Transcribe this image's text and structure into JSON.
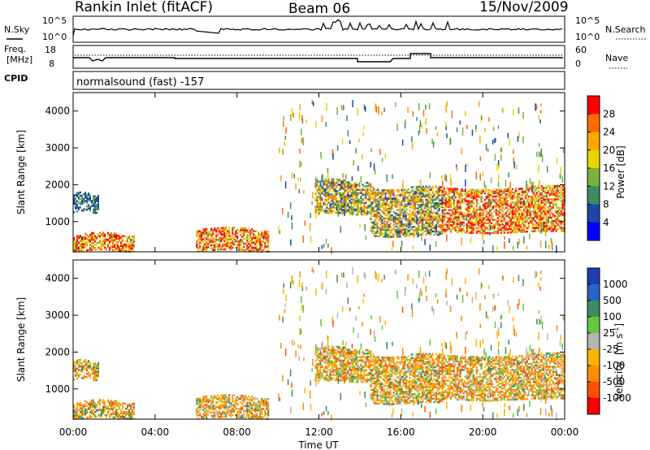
{
  "header": {
    "station": "Rankin Inlet (fitACF)",
    "beam": "Beam 06",
    "date": "15/Nov/2009"
  },
  "summary_panels": {
    "nsky_label": "N.Sky",
    "nsky_ticks": [
      "10^5",
      "10^0"
    ],
    "nsearch_label": "N.Search",
    "nsearch_ticks": [
      "10^5",
      "10^0"
    ],
    "freq_label": "Freq.",
    "freq_unit": "[MHz]",
    "freq_ticks": [
      "18",
      "8"
    ],
    "nave_label": "Nave",
    "nave_ticks": [
      "60",
      "0"
    ],
    "cpid_label": "CPID",
    "cpid_value": "normalsound (fast) -157"
  },
  "chart_data": [
    {
      "type": "heatmap",
      "name": "power",
      "ylabel": "Slant Range [km]",
      "xlabel": "Time UT",
      "ylim": [
        180,
        4500
      ],
      "xlim": [
        0,
        24
      ],
      "yticks": [
        "4000",
        "3000",
        "2000",
        "1000"
      ],
      "xticks": [
        "00:00",
        "04:00",
        "08:00",
        "12:00",
        "16:00",
        "20:00",
        "00:00"
      ],
      "colorbar": {
        "label": "Power [dB]",
        "ticks": [
          "28",
          "24",
          "20",
          "16",
          "12",
          "8",
          "4"
        ],
        "colors": [
          "#ff0000",
          "#ff6a00",
          "#ffa500",
          "#e8d400",
          "#78b43c",
          "#3c8c64",
          "#1e46aa",
          "#0000ff"
        ]
      },
      "echo_regions": [
        {
          "t0": 0.0,
          "t1": 3.0,
          "r0": 200,
          "r1": 650,
          "level": "high"
        },
        {
          "t0": 0.0,
          "t1": 1.2,
          "r0": 1250,
          "r1": 1750,
          "level": "low"
        },
        {
          "t0": 6.0,
          "t1": 9.5,
          "r0": 200,
          "r1": 800,
          "level": "high"
        },
        {
          "t0": 11.8,
          "t1": 14.5,
          "r0": 1200,
          "r1": 2100,
          "level": "mid"
        },
        {
          "t0": 14.5,
          "t1": 18.0,
          "r0": 600,
          "r1": 1900,
          "level": "mid"
        },
        {
          "t0": 18.0,
          "t1": 24.0,
          "r0": 700,
          "r1": 1900,
          "level": "high"
        }
      ]
    },
    {
      "type": "heatmap",
      "name": "velocity",
      "ylabel": "Slant Range [km]",
      "xlabel": "Time UT",
      "ylim": [
        180,
        4500
      ],
      "xlim": [
        0,
        24
      ],
      "yticks": [
        "4000",
        "3000",
        "2000",
        "1000"
      ],
      "xticks": [
        "00:00",
        "04:00",
        "08:00",
        "12:00",
        "16:00",
        "20:00",
        "00:00"
      ],
      "colorbar": {
        "label": "Velocity",
        "unit": "[m s",
        "unit_exp": "-1",
        "unit_close": "]",
        "ticks": [
          "1000",
          "500",
          "100",
          "25",
          "-25",
          "-100",
          "-500",
          "-1000"
        ],
        "colors": [
          "#1e3cb4",
          "#2864c8",
          "#3c8c64",
          "#64c83c",
          "#b4b4b4",
          "#ffb400",
          "#ff8c00",
          "#ff5000",
          "#ff0000"
        ]
      }
    }
  ]
}
